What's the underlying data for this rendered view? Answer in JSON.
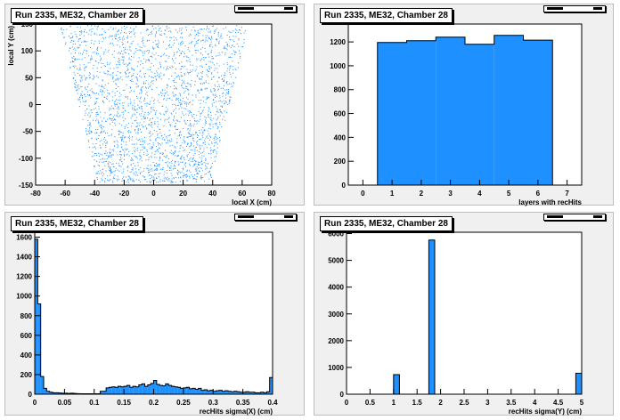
{
  "panels": [
    {
      "title": "Run 2335, ME32, Chamber 28"
    },
    {
      "title": "Run 2335, ME32, Chamber 28"
    },
    {
      "title": "Run 2335, ME32, Chamber 28"
    },
    {
      "title": "Run 2335, ME32, Chamber 28"
    }
  ],
  "colors": {
    "fill": "#1e90ff",
    "marker": "#1e90ff",
    "line": "#000000",
    "pad_bg": "#f0f0f0"
  },
  "chart_data": [
    {
      "type": "scatter",
      "title": "Run 2335, ME32, Chamber 28",
      "xlabel": "local X (cm)",
      "ylabel": "local Y (cm)",
      "xlim": [
        -80,
        80
      ],
      "ylim": [
        -150,
        150
      ],
      "xticks": [
        -80,
        -60,
        -40,
        -20,
        0,
        20,
        40,
        60,
        80
      ],
      "yticks": [
        -150,
        -100,
        -50,
        0,
        50,
        100,
        150
      ],
      "region": {
        "y_range": [
          -145,
          148
        ],
        "x_halfwidth_at_ymin": 38,
        "x_halfwidth_at_ymax": 64
      }
    },
    {
      "type": "bar",
      "title": "Run 2335, ME32, Chamber 28",
      "xlabel": "layers with recHits",
      "ylabel": "",
      "xlim": [
        -0.5,
        7.5
      ],
      "ylim": [
        0,
        1350
      ],
      "xticks": [
        0,
        1,
        2,
        3,
        4,
        5,
        6,
        7
      ],
      "yticks": [
        0,
        200,
        400,
        600,
        800,
        1000,
        1200
      ],
      "categories": [
        1,
        2,
        3,
        4,
        5,
        6
      ],
      "values": [
        1195,
        1210,
        1240,
        1180,
        1255,
        1215
      ]
    },
    {
      "type": "bar",
      "title": "Run 2335, ME32, Chamber 28",
      "xlabel": "recHits sigma(X) (cm)",
      "ylabel": "",
      "xlim": [
        0,
        0.4
      ],
      "ylim": [
        0,
        1650
      ],
      "xticks": [
        0,
        0.05,
        0.1,
        0.15,
        0.2,
        0.25,
        0.3,
        0.35,
        0.4
      ],
      "xtick_labels": [
        "0",
        "0.05",
        "0.1",
        "0.15",
        "0.2",
        "0.25",
        "0.3",
        "0.35",
        "0.4"
      ],
      "yticks": [
        0,
        200,
        400,
        600,
        800,
        1000,
        1200,
        1400,
        1600
      ],
      "bin_width": 0.005,
      "values": [
        1580,
        920,
        180,
        60,
        30,
        20,
        15,
        15,
        12,
        10,
        10,
        8,
        10,
        8,
        6,
        5,
        5,
        5,
        5,
        4,
        5,
        5,
        30,
        30,
        65,
        70,
        75,
        70,
        80,
        75,
        80,
        90,
        70,
        80,
        75,
        95,
        105,
        80,
        95,
        110,
        140,
        100,
        90,
        85,
        105,
        90,
        80,
        75,
        70,
        60,
        65,
        70,
        55,
        60,
        50,
        60,
        40,
        45,
        35,
        40,
        30,
        35,
        40,
        30,
        35,
        30,
        25,
        30,
        25,
        20,
        20,
        25,
        20,
        20,
        15,
        15,
        20,
        15,
        25,
        170
      ]
    },
    {
      "type": "bar",
      "title": "Run 2335, ME32, Chamber 28",
      "xlabel": "recHits sigma(Y) (cm)",
      "ylabel": "",
      "xlim": [
        0,
        5
      ],
      "ylim": [
        0,
        6050
      ],
      "xticks": [
        0,
        0.5,
        1,
        1.5,
        2,
        2.5,
        3,
        3.5,
        4,
        4.5,
        5
      ],
      "xtick_labels": [
        "0",
        "0.5",
        "1",
        "1.5",
        "2",
        "2.5",
        "3",
        "3.5",
        "4",
        "4.5",
        "5"
      ],
      "yticks": [
        0,
        1000,
        2000,
        3000,
        4000,
        5000,
        6000
      ],
      "bin_width": 0.125,
      "values": [
        0,
        0,
        0,
        0,
        0,
        0,
        0,
        0,
        730,
        0,
        0,
        0,
        0,
        0,
        5760,
        0,
        0,
        0,
        0,
        0,
        0,
        0,
        0,
        0,
        0,
        0,
        0,
        0,
        0,
        0,
        0,
        0,
        0,
        0,
        0,
        0,
        0,
        0,
        0,
        780
      ]
    }
  ]
}
